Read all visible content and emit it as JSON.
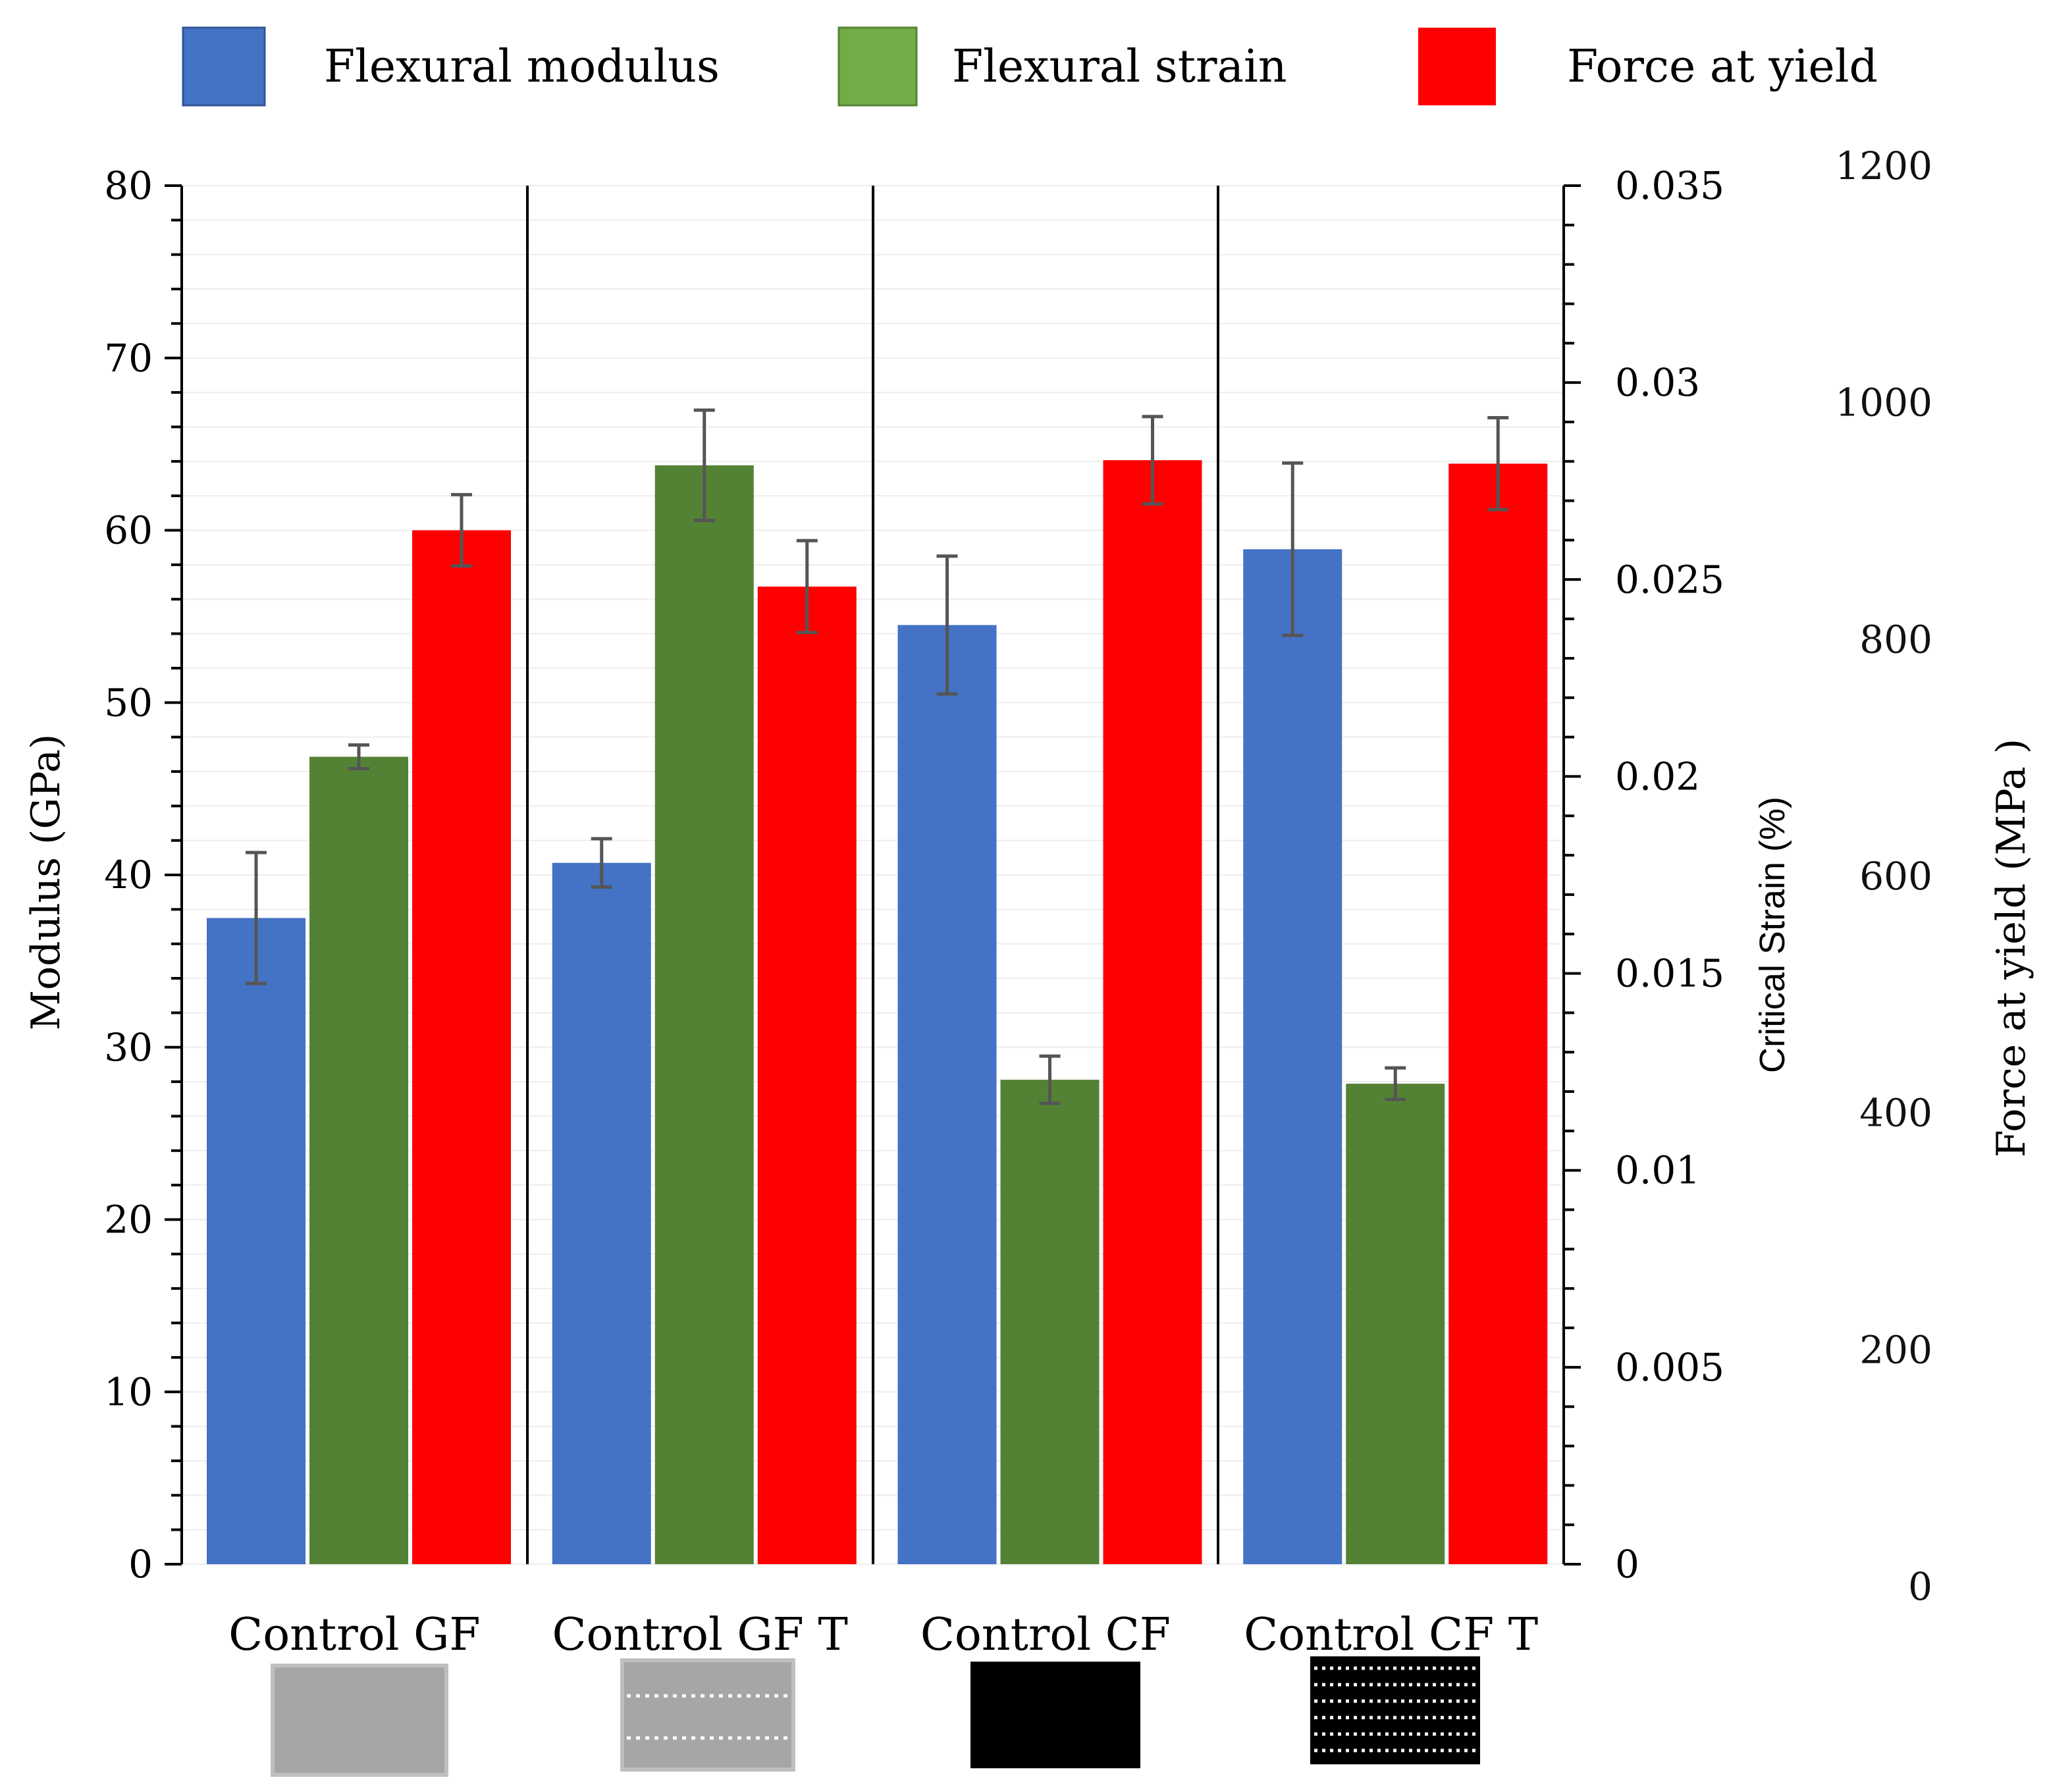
{
  "chart_data": {
    "type": "bar",
    "categories": [
      "Control GF",
      "Control GF T",
      "Control CF",
      "Control CF T"
    ],
    "series": [
      {
        "name": "Flexural modulus",
        "axis": "left",
        "color": "#4472C4",
        "values": [
          37.5,
          40.7,
          54.5,
          58.9
        ],
        "errors": [
          3.8,
          1.4,
          4.0,
          5.0
        ]
      },
      {
        "name": "Flexural strain",
        "axis": "middle",
        "color": "#548235",
        "values": [
          0.0205,
          0.0279,
          0.0123,
          0.0122
        ],
        "errors": [
          0.0003,
          0.0014,
          0.0006,
          0.0004
        ]
      },
      {
        "name": "Force at yield",
        "axis": "right",
        "color": "#FF0000",
        "values": [
          900,
          851,
          961,
          958
        ],
        "errors": [
          31,
          40,
          38,
          40
        ]
      }
    ],
    "axes": {
      "left": {
        "label": "Modulus (GPa)",
        "range": [
          0,
          80
        ],
        "ticks": [
          "0",
          "10",
          "20",
          "30",
          "40",
          "50",
          "60",
          "70",
          "80"
        ]
      },
      "middle": {
        "label": "Critical Strain (%)",
        "range": [
          0,
          0.035
        ],
        "ticks": [
          "0",
          "0.005",
          "0.01",
          "0.015",
          "0.02",
          "0.025",
          "0.03",
          "0.035"
        ]
      },
      "right": {
        "label": "Force at yield (MPa )",
        "range": [
          0,
          1200
        ],
        "ticks": [
          "0",
          "200",
          "400",
          "600",
          "800",
          "1000",
          "1200"
        ]
      }
    },
    "legend": {
      "placement": "top",
      "entries": [
        "Flexural modulus",
        "Flexural strain",
        "Force at yield"
      ]
    },
    "swatches": [
      {
        "category": "Control GF",
        "pattern": "solid-gray"
      },
      {
        "category": "Control GF T",
        "pattern": "gray-dotted-lines"
      },
      {
        "category": "Control CF",
        "pattern": "solid-black"
      },
      {
        "category": "Control CF T",
        "pattern": "black-dotted-lines"
      }
    ],
    "grid": true,
    "title": ""
  }
}
